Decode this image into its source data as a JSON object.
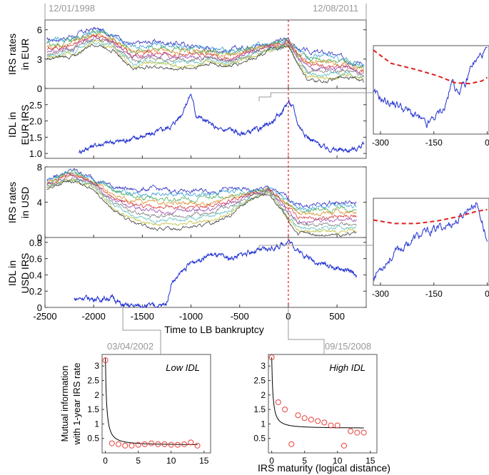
{
  "dates": {
    "start": "12/01/1998",
    "end": "12/08/2011",
    "low": "03/04/2002",
    "high": "09/15/2008"
  },
  "colors": {
    "idl": "#2030d0",
    "marker": "#e8403a",
    "event": "#dd2020",
    "grey": "#999999",
    "frame": "#555555",
    "fit": "#000000",
    "curves": [
      "#3030c0",
      "#40a0d8",
      "#50b060",
      "#d89030",
      "#d84040",
      "#a050b0",
      "#808080",
      "#60c0c0",
      "#c0c040",
      "#404040"
    ]
  },
  "chart_data": [
    {
      "id": "eur_rates",
      "type": "line",
      "ylabel": "IRS rates in EUR",
      "x": [
        -2480,
        -2200,
        -2000,
        -1800,
        -1600,
        -1400,
        -1200,
        -1000,
        -800,
        -600,
        -400,
        -200,
        -100,
        0,
        100,
        200,
        400,
        600,
        780
      ],
      "series_top": [
        4.9,
        5.4,
        6.1,
        5.6,
        4.4,
        4.8,
        4.7,
        4.4,
        4.1,
        3.8,
        4.4,
        4.6,
        4.8,
        5.1,
        4.0,
        3.7,
        3.6,
        3.0,
        2.6
      ],
      "series_bottom": [
        2.9,
        3.3,
        4.6,
        4.0,
        2.0,
        2.3,
        2.0,
        2.1,
        2.6,
        2.2,
        3.0,
        3.9,
        4.0,
        4.3,
        2.5,
        0.8,
        0.7,
        1.3,
        0.7
      ],
      "xlim": [
        -2500,
        800
      ],
      "ylim": [
        0,
        7
      ],
      "yticks": [
        "0",
        "3",
        "6"
      ],
      "ytick_values": [
        0,
        3,
        6
      ]
    },
    {
      "id": "eur_idl",
      "type": "line",
      "ylabel": "IDL in EUR IRS",
      "x": [
        -2150,
        -2000,
        -1800,
        -1600,
        -1400,
        -1200,
        -1100,
        -1000,
        -950,
        -800,
        -700,
        -600,
        -500,
        -400,
        -300,
        -200,
        -100,
        0,
        50,
        100,
        200,
        300,
        400,
        500,
        600,
        700,
        780
      ],
      "values": [
        1.05,
        1.25,
        1.35,
        1.45,
        1.6,
        1.85,
        2.2,
        2.85,
        2.2,
        1.9,
        1.7,
        1.75,
        1.6,
        1.65,
        1.75,
        1.9,
        2.15,
        2.6,
        2.4,
        1.9,
        1.5,
        1.3,
        1.15,
        1.1,
        1.1,
        1.15,
        1.3
      ],
      "xlim": [
        -2500,
        800
      ],
      "ylim": [
        0.85,
        3.0
      ],
      "yticks": [
        "1.0",
        "1.5",
        "2.0",
        "2.5"
      ],
      "ytick_values": [
        1.0,
        1.5,
        2.0,
        2.5
      ]
    },
    {
      "id": "usd_rates",
      "type": "line",
      "ylabel": "IRS rates in USD",
      "x": [
        -2480,
        -2300,
        -2200,
        -2000,
        -1800,
        -1600,
        -1400,
        -1200,
        -1000,
        -800,
        -600,
        -400,
        -200,
        -100,
        0,
        100,
        300,
        500,
        700
      ],
      "series_top": [
        6.5,
        7.4,
        7.6,
        6.7,
        5.8,
        5.4,
        5.5,
        5.3,
        5.3,
        5.3,
        5.5,
        5.3,
        5.6,
        5.0,
        4.5,
        3.6,
        3.7,
        4.0,
        3.9
      ],
      "series_bottom": [
        5.5,
        6.2,
        6.3,
        5.6,
        3.0,
        1.7,
        1.0,
        1.0,
        1.2,
        1.5,
        2.5,
        4.2,
        5.0,
        3.5,
        1.8,
        0.5,
        0.3,
        0.3,
        0.4
      ],
      "xlim": [
        -2500,
        800
      ],
      "ylim": [
        0,
        8
      ],
      "yticks": [
        "0",
        "4",
        "8"
      ],
      "ytick_values": [
        0,
        4,
        8
      ]
    },
    {
      "id": "usd_idl",
      "type": "line",
      "ylabel": "IDL in USD IRS",
      "x": [
        -2200,
        -2100,
        -1950,
        -1800,
        -1700,
        -1500,
        -1300,
        -1250,
        -1200,
        -1000,
        -800,
        -600,
        -400,
        -200,
        -100,
        0,
        100,
        200,
        300,
        400,
        500,
        600,
        700
      ],
      "values": [
        0.1,
        0.12,
        0.1,
        0.12,
        0.02,
        0.02,
        0.02,
        0.05,
        0.3,
        0.55,
        0.65,
        0.6,
        0.68,
        0.72,
        0.75,
        0.82,
        0.7,
        0.62,
        0.55,
        0.52,
        0.48,
        0.45,
        0.4
      ],
      "xlim": [
        -2500,
        800
      ],
      "ylim": [
        0,
        0.86
      ],
      "yticks": [
        "0",
        "0.2",
        "0.4",
        "0.6",
        "0.8"
      ],
      "ytick_values": [
        0,
        0.2,
        0.4,
        0.6,
        0.8
      ],
      "xticks": [
        "-2500",
        "-2000",
        "-1500",
        "-1000",
        "-500",
        "0",
        "500"
      ],
      "xtick_values": [
        -2500,
        -2000,
        -1500,
        -1000,
        -500,
        0,
        500
      ],
      "xlabel": "Time to LB bankruptcy"
    }
  ],
  "zoom_eur": {
    "xticks": [
      "-300",
      "-150",
      "0"
    ],
    "xtick_values": [
      -300,
      -150,
      0
    ],
    "xlim": [
      -320,
      5
    ],
    "ylim": [
      0,
      1
    ],
    "idl_x": [
      -320,
      -290,
      -250,
      -200,
      -170,
      -150,
      -120,
      -95,
      -85,
      -60,
      -45,
      -25,
      -10,
      0
    ],
    "idl_y": [
      0.45,
      0.38,
      0.33,
      0.2,
      0.08,
      0.18,
      0.3,
      0.62,
      0.48,
      0.55,
      0.78,
      0.85,
      0.92,
      0.95
    ],
    "dash_x": [
      -320,
      -270,
      -200,
      -140,
      -90,
      -50,
      -15,
      0
    ],
    "dash_y": [
      0.95,
      0.8,
      0.73,
      0.66,
      0.58,
      0.57,
      0.6,
      0.64
    ]
  },
  "zoom_usd": {
    "xticks": [
      "-300",
      "-150",
      "0"
    ],
    "xtick_values": [
      -300,
      -150,
      0
    ],
    "xlim": [
      -320,
      5
    ],
    "ylim": [
      0,
      1
    ],
    "idl_x": [
      -320,
      -290,
      -250,
      -200,
      -160,
      -120,
      -80,
      -50,
      -30,
      -15,
      0
    ],
    "idl_y": [
      0.1,
      0.25,
      0.4,
      0.55,
      0.62,
      0.68,
      0.75,
      0.9,
      0.95,
      0.75,
      0.5
    ],
    "dash_x": [
      -320,
      -260,
      -200,
      -140,
      -80,
      -30,
      0
    ],
    "dash_y": [
      0.75,
      0.71,
      0.71,
      0.74,
      0.79,
      0.85,
      0.87
    ]
  },
  "bottom": {
    "ylabel": "Mutual information with 1-year IRS rate",
    "xlabel": "IRS maturity (logical distance)",
    "xticks": [
      "0",
      "5",
      "10",
      "15"
    ],
    "xtick_values": [
      0,
      5,
      10,
      15
    ],
    "yticks": [
      "0.5",
      "1",
      "1.5",
      "2",
      "2.5",
      "3"
    ],
    "ytick_values": [
      0.5,
      1,
      1.5,
      2,
      2.5,
      3
    ],
    "xlim": [
      -0.5,
      16
    ],
    "ylim": [
      0,
      3.4
    ],
    "low": {
      "label": "Low IDL",
      "points_x": [
        0,
        1,
        2,
        3,
        4,
        5,
        6,
        7,
        8,
        9,
        10,
        11,
        12,
        13,
        14
      ],
      "points_y": [
        3.2,
        0.33,
        0.3,
        0.25,
        0.25,
        0.28,
        0.3,
        0.33,
        0.3,
        0.3,
        0.28,
        0.28,
        0.3,
        0.36,
        0.25
      ],
      "fit_floor": 0.27
    },
    "high": {
      "label": "High IDL",
      "points_x": [
        0,
        1,
        2,
        3,
        4,
        5,
        6,
        7,
        8,
        9,
        10,
        11,
        12,
        13,
        14
      ],
      "points_y": [
        3.3,
        1.75,
        1.5,
        0.3,
        1.3,
        1.2,
        1.15,
        1.1,
        1.05,
        0.95,
        0.95,
        0.25,
        0.75,
        0.7,
        0.7
      ],
      "fit_floor": 0.85
    }
  }
}
